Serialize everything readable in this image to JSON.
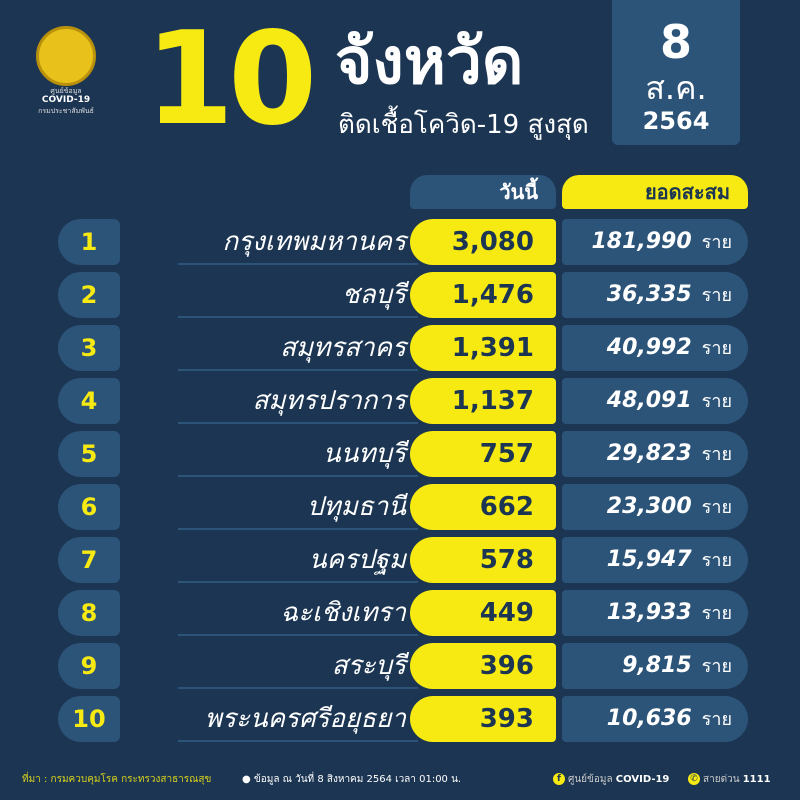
{
  "logo": {
    "line1": "ศูนย์ข้อมูล",
    "line2": "COVID-19",
    "line3": "กรมประชาสัมพันธ์"
  },
  "header": {
    "number": "10",
    "title": "จังหวัด",
    "subtitle": "ติดเชื้อโควิด-19 สูงสุด"
  },
  "date": {
    "day": "8",
    "month": "ส.ค.",
    "year": "2564"
  },
  "columns": {
    "today": "วันนี้",
    "total": "ยอดสะสม"
  },
  "unit": "ราย",
  "rows": [
    {
      "rank": "1",
      "province": "กรุงเทพมหานคร",
      "today": "3,080",
      "total": "181,990"
    },
    {
      "rank": "2",
      "province": "ชลบุรี",
      "today": "1,476",
      "total": "36,335"
    },
    {
      "rank": "3",
      "province": "สมุทรสาคร",
      "today": "1,391",
      "total": "40,992"
    },
    {
      "rank": "4",
      "province": "สมุทรปราการ",
      "today": "1,137",
      "total": "48,091"
    },
    {
      "rank": "5",
      "province": "นนทบุรี",
      "today": "757",
      "total": "29,823"
    },
    {
      "rank": "6",
      "province": "ปทุมธานี",
      "today": "662",
      "total": "23,300"
    },
    {
      "rank": "7",
      "province": "นครปฐม",
      "today": "578",
      "total": "15,947"
    },
    {
      "rank": "8",
      "province": "ฉะเชิงเทรา",
      "today": "449",
      "total": "13,933"
    },
    {
      "rank": "9",
      "province": "สระบุรี",
      "today": "396",
      "total": "9,815"
    },
    {
      "rank": "10",
      "province": "พระนครศรีอยุธยา",
      "today": "393",
      "total": "10,636"
    }
  ],
  "footer": {
    "source": "ที่มา : กรมควบคุมโรค กระทรวงสาธารณสุข",
    "note": "● ข้อมูล ณ วันที่ 8 สิงหาคม 2564 เวลา 01:00 น.",
    "fb_label": "ศูนย์ข้อมูล",
    "fb_name": "COVID-19",
    "hotline_label": "สายด่วน",
    "hotline": "1111"
  },
  "colors": {
    "background": "#1b3552",
    "accent": "#f7ea12",
    "panel": "#2c5479"
  }
}
